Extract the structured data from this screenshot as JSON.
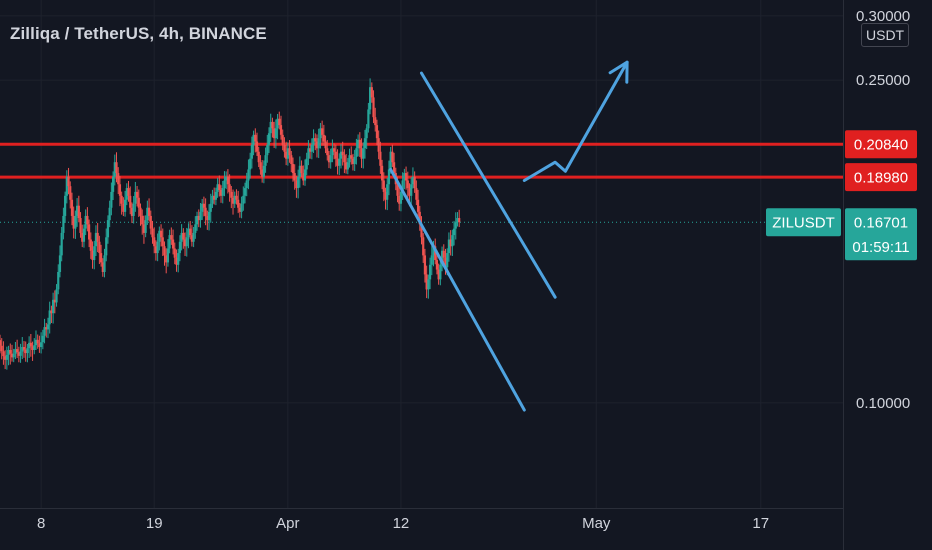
{
  "header": {
    "title": "Zilliqa / TetherUS, 4h, BINANCE",
    "currency_button": "USDT"
  },
  "colors": {
    "background": "#131722",
    "grid": "#1e222d",
    "up": "#26a69a",
    "down": "#ef5350",
    "resistance": "#e02020",
    "drawing": "#4fa3e0",
    "last_price": "#26a69a"
  },
  "chart_data": {
    "type": "candlestick",
    "symbol": "ZILUSDT",
    "interval": "4h",
    "y_axis": {
      "scale": "log",
      "ylim": [
        0.077,
        0.305
      ],
      "tick_labels": [
        "0.30000",
        "0.25000",
        "0.10000"
      ],
      "tick_values": [
        0.3,
        0.25,
        0.1
      ],
      "side": "right"
    },
    "x_axis": {
      "tick_labels": [
        "8",
        "19",
        "Apr",
        "12",
        "May",
        "17"
      ],
      "tick_dates": [
        "2021-03-08",
        "2021-03-19",
        "2021-04-01",
        "2021-04-12",
        "2021-05-01",
        "2021-05-17"
      ],
      "range": [
        "2021-03-04",
        "2021-05-25"
      ]
    },
    "grid": true,
    "horizontal_levels": [
      {
        "value": 0.2084,
        "label": "0.20840"
      },
      {
        "value": 0.1898,
        "label": "0.18980"
      }
    ],
    "last_price": {
      "symbol_label": "ZILUSDT",
      "value": 0.16701,
      "label": "0.16701",
      "countdown": "01:59:11"
    },
    "drawings": {
      "channel": [
        {
          "start": [
            "2021-04-14",
            0.255
          ],
          "end": [
            "2021-04-27",
            0.135
          ]
        },
        {
          "start": [
            "2021-04-11",
            0.194
          ],
          "end": [
            "2021-04-24",
            0.098
          ]
        }
      ],
      "projection_path": [
        [
          "2021-04-24",
          0.188
        ],
        [
          "2021-04-27",
          0.198
        ],
        [
          "2021-04-28",
          0.193
        ],
        [
          "2021-05-04",
          0.263
        ]
      ]
    },
    "ohlc_closes": [
      0.1185,
      0.1172,
      0.116,
      0.1148,
      0.117,
      0.1195,
      0.1176,
      0.1158,
      0.1142,
      0.113,
      0.1146,
      0.1162,
      0.115,
      0.1138,
      0.115,
      0.1165,
      0.1155,
      0.1143,
      0.1157,
      0.1172,
      0.1163,
      0.1152,
      0.1168,
      0.1186,
      0.1174,
      0.1162,
      0.1178,
      0.1196,
      0.1184,
      0.1172,
      0.1188,
      0.121,
      0.124,
      0.1232,
      0.125,
      0.13,
      0.129,
      0.134,
      0.133,
      0.138,
      0.145,
      0.152,
      0.162,
      0.17,
      0.18,
      0.19,
      0.185,
      0.178,
      0.17,
      0.164,
      0.17,
      0.175,
      0.169,
      0.162,
      0.158,
      0.164,
      0.17,
      0.166,
      0.159,
      0.154,
      0.15,
      0.156,
      0.162,
      0.158,
      0.153,
      0.149,
      0.145,
      0.152,
      0.16,
      0.168,
      0.174,
      0.182,
      0.19,
      0.198,
      0.192,
      0.186,
      0.18,
      0.176,
      0.172,
      0.178,
      0.184,
      0.18,
      0.174,
      0.17,
      0.176,
      0.182,
      0.179,
      0.174,
      0.17,
      0.166,
      0.162,
      0.168,
      0.174,
      0.17,
      0.164,
      0.16,
      0.156,
      0.153,
      0.158,
      0.163,
      0.16,
      0.156,
      0.152,
      0.149,
      0.155,
      0.161,
      0.159,
      0.155,
      0.151,
      0.148,
      0.153,
      0.158,
      0.162,
      0.159,
      0.156,
      0.16,
      0.164,
      0.161,
      0.158,
      0.162,
      0.166,
      0.17,
      0.168,
      0.172,
      0.176,
      0.174,
      0.17,
      0.168,
      0.172,
      0.176,
      0.18,
      0.178,
      0.182,
      0.186,
      0.183,
      0.18,
      0.184,
      0.188,
      0.19,
      0.186,
      0.182,
      0.179,
      0.176,
      0.18,
      0.178,
      0.174,
      0.172,
      0.176,
      0.18,
      0.184,
      0.188,
      0.194,
      0.2,
      0.208,
      0.214,
      0.21,
      0.204,
      0.198,
      0.194,
      0.19,
      0.196,
      0.202,
      0.208,
      0.215,
      0.222,
      0.218,
      0.212,
      0.218,
      0.224,
      0.22,
      0.214,
      0.208,
      0.204,
      0.2,
      0.206,
      0.202,
      0.197,
      0.192,
      0.188,
      0.184,
      0.19,
      0.196,
      0.192,
      0.188,
      0.194,
      0.2,
      0.206,
      0.204,
      0.208,
      0.212,
      0.21,
      0.206,
      0.212,
      0.218,
      0.214,
      0.21,
      0.206,
      0.202,
      0.198,
      0.202,
      0.206,
      0.204,
      0.2,
      0.196,
      0.2,
      0.204,
      0.202,
      0.198,
      0.194,
      0.198,
      0.202,
      0.2,
      0.197,
      0.201,
      0.206,
      0.211,
      0.206,
      0.2,
      0.206,
      0.212,
      0.218,
      0.23,
      0.245,
      0.238,
      0.225,
      0.22,
      0.212,
      0.204,
      0.196,
      0.188,
      0.182,
      0.178,
      0.186,
      0.194,
      0.204,
      0.198,
      0.192,
      0.186,
      0.18,
      0.176,
      0.182,
      0.188,
      0.192,
      0.188,
      0.184,
      0.18,
      0.186,
      0.19,
      0.184,
      0.178,
      0.172,
      0.166,
      0.16,
      0.152,
      0.144,
      0.138,
      0.142,
      0.148,
      0.152,
      0.156,
      0.15,
      0.146,
      0.142,
      0.148,
      0.154,
      0.151,
      0.147,
      0.153,
      0.159,
      0.156,
      0.161,
      0.164,
      0.167,
      0.169,
      0.167
    ]
  }
}
